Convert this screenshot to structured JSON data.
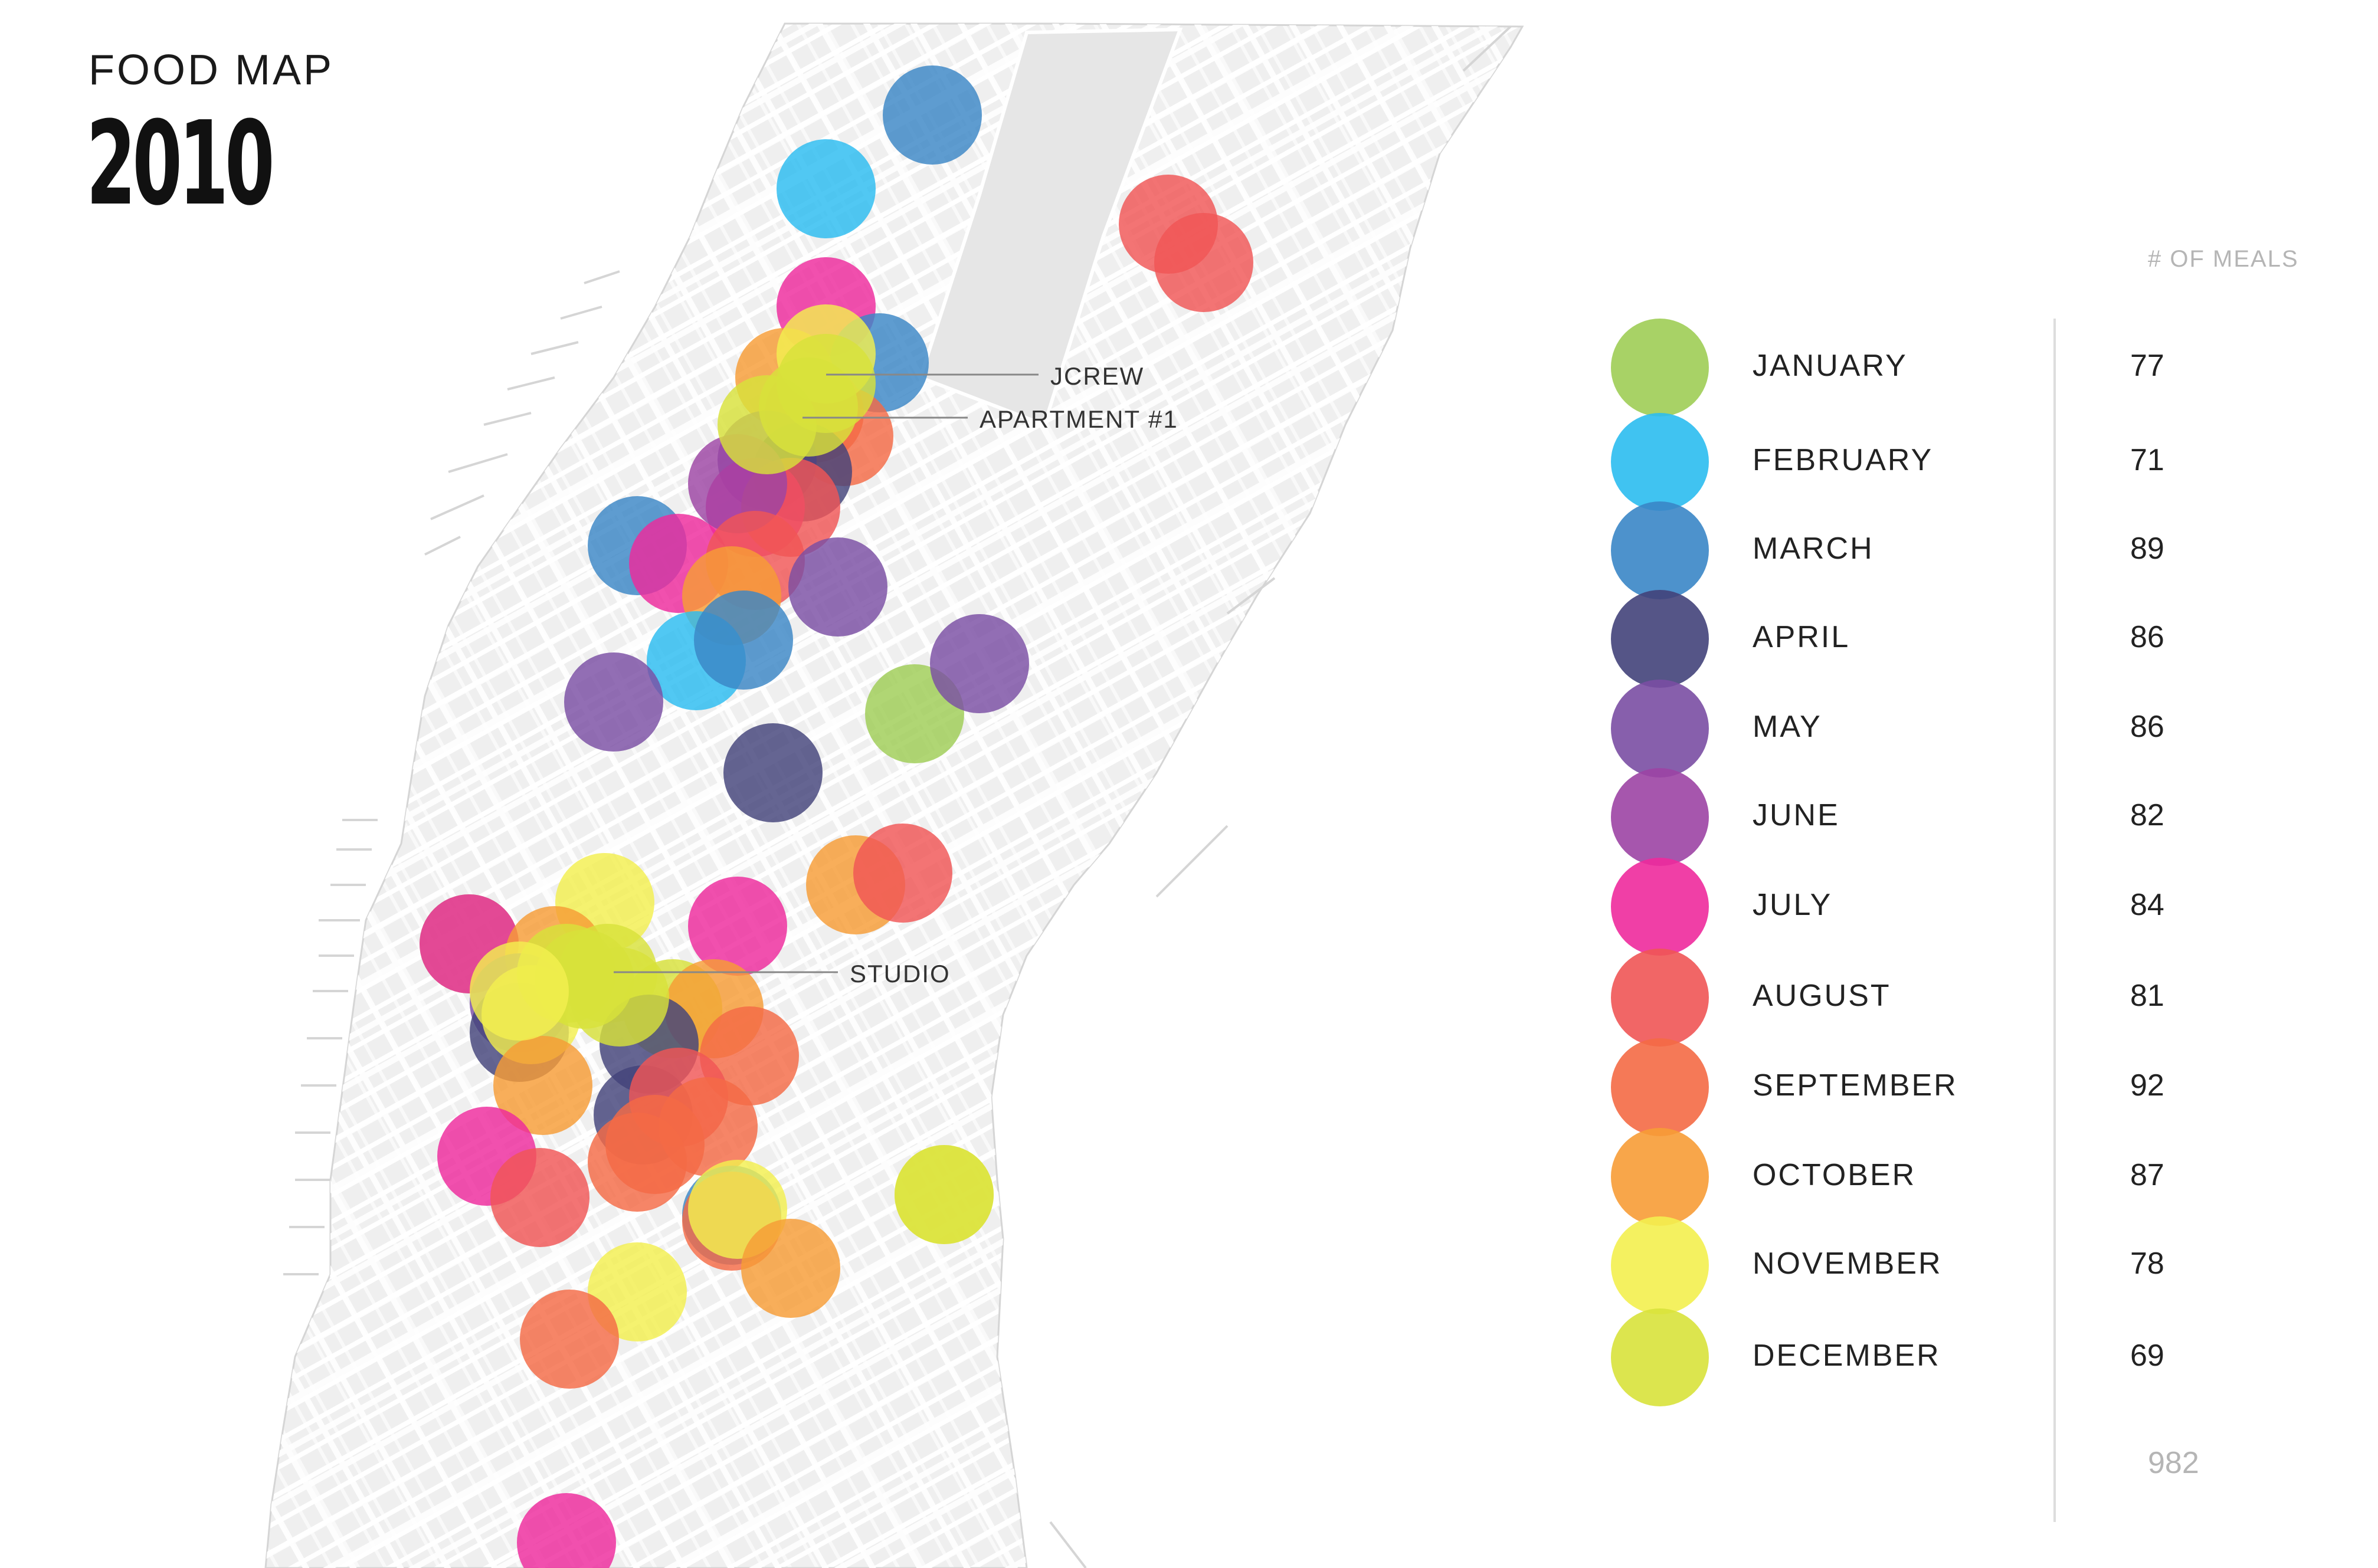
{
  "title": "FOOD MAP",
  "year": "2010",
  "legend": {
    "header": "# OF MEALS",
    "items": [
      {
        "month": "JANUARY",
        "count": "77",
        "color": "#9fcd55"
      },
      {
        "month": "FEBRUARY",
        "count": "71",
        "color": "#2bbcf0"
      },
      {
        "month": "MARCH",
        "count": "89",
        "color": "#3a86c6"
      },
      {
        "month": "APRIL",
        "count": "86",
        "color": "#43437a"
      },
      {
        "month": "MAY",
        "count": "86",
        "color": "#7a4ea3"
      },
      {
        "month": "JUNE",
        "count": "82",
        "color": "#9c44a4"
      },
      {
        "month": "JULY",
        "count": "84",
        "color": "#ee2a9c"
      },
      {
        "month": "AUGUST",
        "count": "81",
        "color": "#f05555"
      },
      {
        "month": "SEPTEMBER",
        "count": "92",
        "color": "#f46a45"
      },
      {
        "month": "OCTOBER",
        "count": "87",
        "color": "#f79c36"
      },
      {
        "month": "NOVEMBER",
        "count": "78",
        "color": "#f3ef4f"
      },
      {
        "month": "DECEMBER",
        "count": "69",
        "color": "#d8e23b"
      }
    ],
    "total": "982"
  },
  "locations": {
    "jcrew": "JCREW",
    "apartment": "APARTMENT #1",
    "studio": "STUDIO"
  }
}
